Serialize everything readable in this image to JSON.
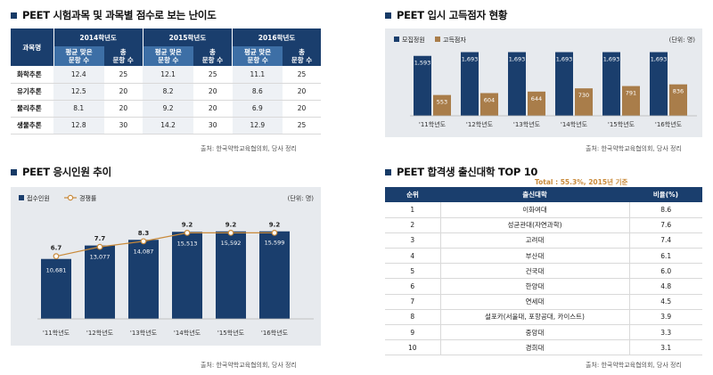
{
  "panel1": {
    "title": "PEET 시험과목 및 과목별 점수로 보는 난이도",
    "header_subject": "과목명",
    "years": [
      "2014학년도",
      "2015학년도",
      "2016학년도"
    ],
    "sub_avg_line1": "평균 맞은",
    "sub_avg_line2": "문항 수",
    "sub_total_line1": "총",
    "sub_total_line2": "문항 수",
    "rows": [
      {
        "subject": "화학추론",
        "v": [
          "12.4",
          "25",
          "12.1",
          "25",
          "11.1",
          "25"
        ]
      },
      {
        "subject": "유기추론",
        "v": [
          "12.5",
          "20",
          "8.2",
          "20",
          "8.6",
          "20"
        ]
      },
      {
        "subject": "물리추론",
        "v": [
          "8.1",
          "20",
          "9.2",
          "20",
          "6.9",
          "20"
        ]
      },
      {
        "subject": "생물추론",
        "v": [
          "12.8",
          "30",
          "14.2",
          "30",
          "12.9",
          "25"
        ]
      }
    ],
    "source": "출처: 한국약학교육협의회, 당사 정리"
  },
  "panel2": {
    "title": "PEET 입시 고득점자 현황",
    "unit": "(단위: 명)",
    "source": "출처: 한국약학교육협의회, 당사 정리",
    "chart_data": {
      "type": "bar",
      "categories": [
        "'11학년도",
        "'12학년도",
        "'13학년도",
        "'14학년도",
        "'15학년도",
        "'16학년도"
      ],
      "series": [
        {
          "name": "모집정원",
          "values": [
            1593,
            1693,
            1693,
            1693,
            1693,
            1693
          ],
          "labels": [
            "1,593",
            "1,693",
            "1,693",
            "1,693",
            "1,693",
            "1,693"
          ],
          "color": "#1a3e6d"
        },
        {
          "name": "고득점자",
          "values": [
            553,
            604,
            644,
            730,
            791,
            836
          ],
          "labels": [
            "553",
            "604",
            "644",
            "730",
            "791",
            "836"
          ],
          "color": "#a97d4a"
        }
      ],
      "ylim": [
        0,
        1800
      ]
    }
  },
  "panel3": {
    "title": "PEET 응시인원 추이",
    "unit": "(단위: 명)",
    "source": "출처: 한국약학교육협의회, 당사 정리",
    "chart_data": {
      "type": "bar",
      "categories": [
        "'11학년도",
        "'12학년도",
        "'13학년도",
        "'14학년도",
        "'15학년도",
        "'16학년도"
      ],
      "series": [
        {
          "name": "접수인원",
          "values": [
            10681,
            13077,
            14087,
            15513,
            15592,
            15599
          ],
          "labels": [
            "10,681",
            "13,077",
            "14,087",
            "15,513",
            "15,592",
            "15,599"
          ],
          "color": "#1a3e6d"
        },
        {
          "name": "경쟁률",
          "values": [
            6.7,
            7.7,
            8.3,
            9.2,
            9.2,
            9.2
          ],
          "labels": [
            "6.7",
            "7.7",
            "8.3",
            "9.2",
            "9.2",
            "9.2"
          ],
          "color": "#c98a3a"
        }
      ],
      "ylim": [
        0,
        20000
      ],
      "y2lim": [
        0,
        12
      ]
    }
  },
  "panel4": {
    "title": "PEET 합격생 출신대학 TOP 10",
    "total": "Total : 55.3%, 2015년 기준",
    "headers": [
      "순위",
      "출신대학",
      "비율(%)"
    ],
    "rows": [
      {
        "rank": "1",
        "univ": "이화여대",
        "pct": "8.6"
      },
      {
        "rank": "2",
        "univ": "성균관대(자연과학)",
        "pct": "7.6"
      },
      {
        "rank": "3",
        "univ": "고려대",
        "pct": "7.4"
      },
      {
        "rank": "4",
        "univ": "부산대",
        "pct": "6.1"
      },
      {
        "rank": "5",
        "univ": "건국대",
        "pct": "6.0"
      },
      {
        "rank": "6",
        "univ": "한양대",
        "pct": "4.8"
      },
      {
        "rank": "7",
        "univ": "연세대",
        "pct": "4.5"
      },
      {
        "rank": "8",
        "univ": "설포카(서울대, 포항공대, 카이스트)",
        "pct": "3.9"
      },
      {
        "rank": "9",
        "univ": "중앙대",
        "pct": "3.3"
      },
      {
        "rank": "10",
        "univ": "경희대",
        "pct": "3.1"
      }
    ],
    "source": "출처: 한국약학교육협의회, 당사 정리"
  }
}
